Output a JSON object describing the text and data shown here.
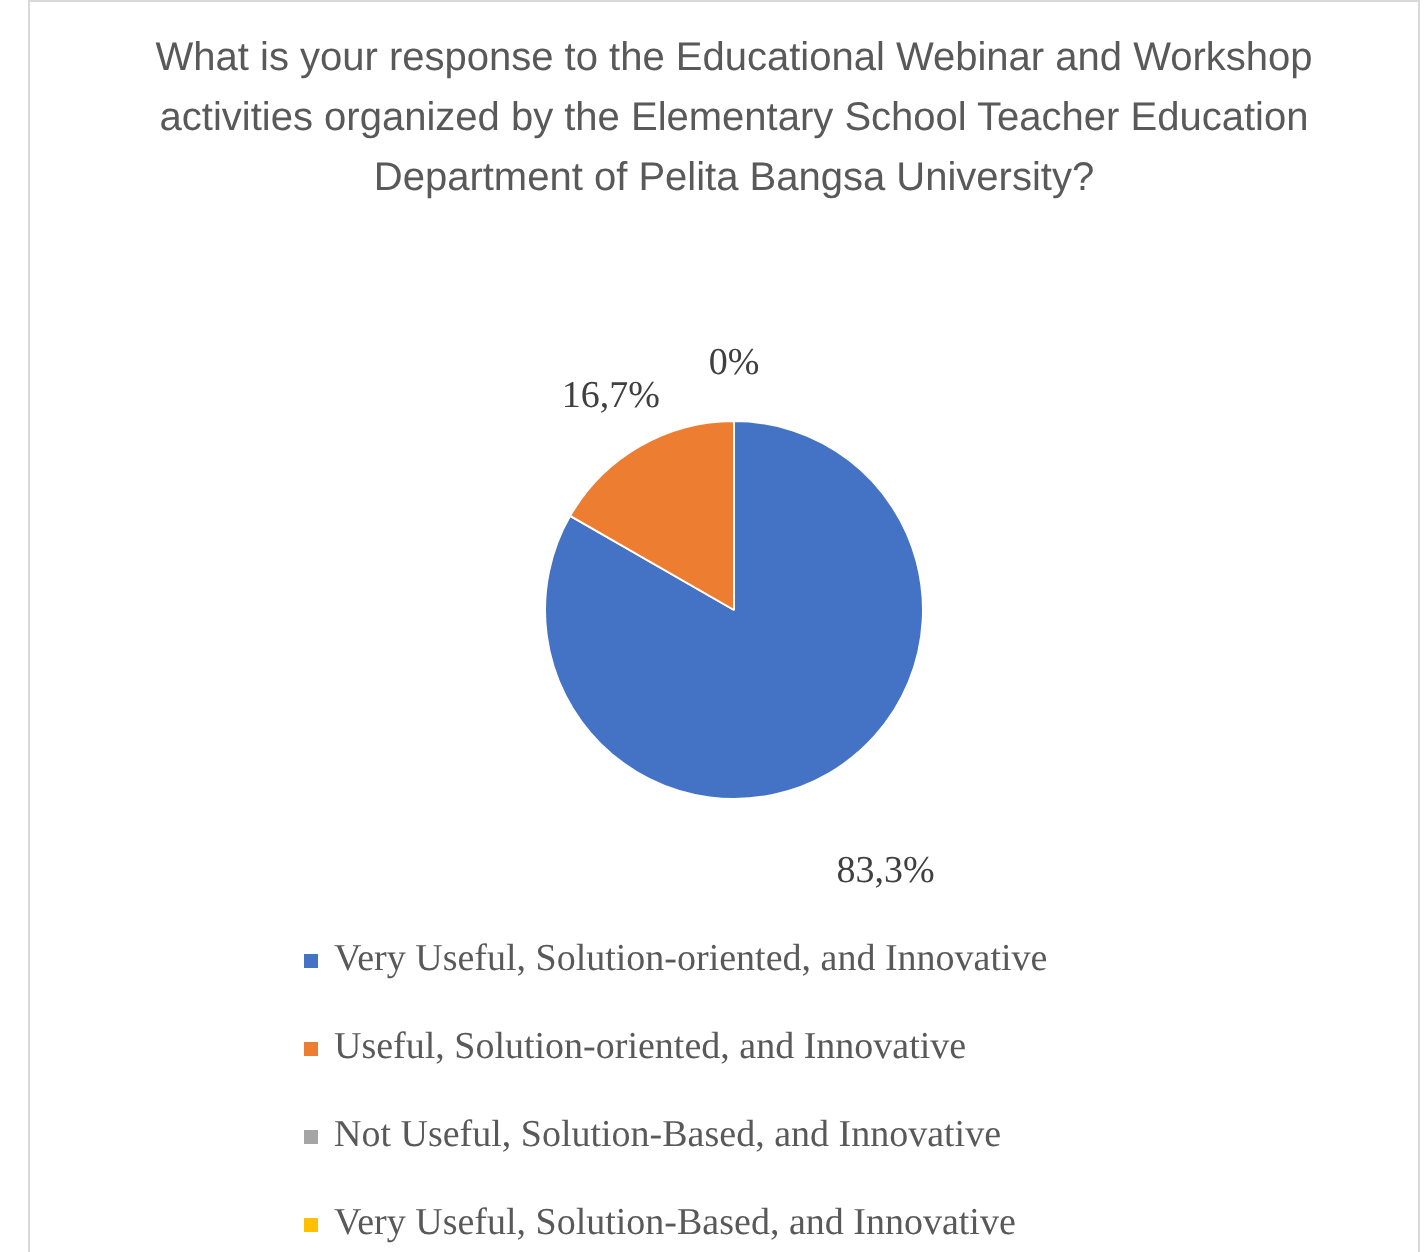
{
  "chart_data": {
    "type": "pie",
    "title": "What is your response to the Educational Webinar and Workshop activities organized by the Elementary School Teacher Education Department of Pelita Bangsa University?",
    "categories": [
      "Very Useful, Solution-oriented, and Innovative",
      "Useful, Solution-oriented, and Innovative",
      "Not Useful, Solution-Based, and Innovative",
      "Very Useful, Solution-Based, and Innovative"
    ],
    "values": [
      83.3,
      16.7,
      0,
      0
    ],
    "colors": [
      "#4472c4",
      "#ed7d31",
      "#a5a5a5",
      "#ffc000"
    ],
    "value_labels": [
      "83,3%",
      "16,7%",
      "0%",
      null
    ],
    "legend": "bottom"
  }
}
